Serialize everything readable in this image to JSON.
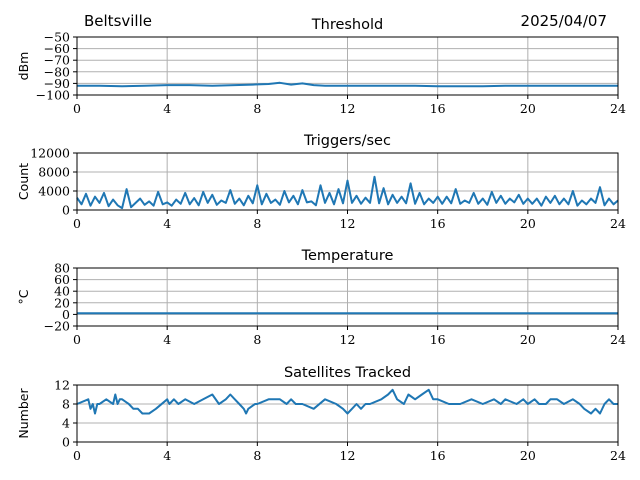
{
  "header": {
    "station": "Beltsville",
    "date": "2025/04/07"
  },
  "colors": {
    "line": "#1f77b4",
    "grid": "#b0b0b0",
    "axis": "#000000"
  },
  "chart_data": [
    {
      "type": "line",
      "title": "Threshold",
      "ylabel": "dBm",
      "xlim": [
        0,
        24
      ],
      "ylim": [
        -100,
        -50
      ],
      "xticks": [
        0,
        4,
        8,
        12,
        16,
        20,
        24
      ],
      "yticks": [
        -100,
        -90,
        -80,
        -70,
        -60,
        -50
      ],
      "grid": true,
      "series": [
        {
          "x": [
            0,
            1,
            2,
            3,
            4,
            5,
            6,
            7,
            7.8,
            8.5,
            9,
            9.5,
            10,
            10.5,
            11,
            12,
            13,
            14,
            15,
            16,
            17,
            18,
            19,
            20,
            21,
            22,
            23,
            24
          ],
          "values": [
            -92,
            -92,
            -92.5,
            -92,
            -91.5,
            -91.5,
            -92,
            -91.5,
            -91,
            -90.5,
            -89.5,
            -91,
            -90,
            -91.5,
            -92,
            -92,
            -92,
            -92,
            -92,
            -92.5,
            -92.5,
            -92.5,
            -92,
            -92,
            -92,
            -92,
            -92,
            -92
          ]
        }
      ]
    },
    {
      "type": "line",
      "title": "Triggers/sec",
      "ylabel": "Count",
      "xlim": [
        0,
        24
      ],
      "ylim": [
        0,
        12000
      ],
      "xticks": [
        0,
        4,
        8,
        12,
        16,
        20,
        24
      ],
      "yticks": [
        0,
        4000,
        8000,
        12000
      ],
      "grid": true,
      "series": [
        {
          "x": [
            0,
            0.2,
            0.4,
            0.6,
            0.8,
            1.0,
            1.2,
            1.4,
            1.6,
            1.8,
            2.0,
            2.2,
            2.4,
            2.6,
            2.8,
            3.0,
            3.2,
            3.4,
            3.6,
            3.8,
            4.0,
            4.2,
            4.4,
            4.6,
            4.8,
            5.0,
            5.2,
            5.4,
            5.6,
            5.8,
            6.0,
            6.2,
            6.4,
            6.6,
            6.8,
            7.0,
            7.2,
            7.4,
            7.6,
            7.8,
            8.0,
            8.2,
            8.4,
            8.6,
            8.8,
            9.0,
            9.2,
            9.4,
            9.6,
            9.8,
            10.0,
            10.2,
            10.4,
            10.6,
            10.8,
            11.0,
            11.2,
            11.4,
            11.6,
            11.8,
            12.0,
            12.2,
            12.4,
            12.6,
            12.8,
            13.0,
            13.2,
            13.4,
            13.6,
            13.8,
            14.0,
            14.2,
            14.4,
            14.6,
            14.8,
            15.0,
            15.2,
            15.4,
            15.6,
            15.8,
            16.0,
            16.2,
            16.4,
            16.6,
            16.8,
            17.0,
            17.2,
            17.4,
            17.6,
            17.8,
            18.0,
            18.2,
            18.4,
            18.6,
            18.8,
            19.0,
            19.2,
            19.4,
            19.6,
            19.8,
            20.0,
            20.2,
            20.4,
            20.6,
            20.8,
            21.0,
            21.2,
            21.4,
            21.6,
            21.8,
            22.0,
            22.2,
            22.4,
            22.6,
            22.8,
            23.0,
            23.2,
            23.4,
            23.6,
            23.8,
            24.0
          ],
          "values": [
            2600,
            1200,
            3400,
            900,
            2800,
            1500,
            3600,
            800,
            2200,
            1000,
            400,
            4400,
            600,
            1500,
            2400,
            1100,
            1800,
            900,
            3800,
            1200,
            1600,
            900,
            2200,
            1300,
            3600,
            1200,
            2500,
            1000,
            3800,
            1500,
            3200,
            1100,
            2000,
            1500,
            4200,
            1300,
            2400,
            1000,
            3000,
            1400,
            5200,
            1200,
            3400,
            1500,
            2200,
            1100,
            4000,
            1600,
            3000,
            1200,
            4200,
            1600,
            1800,
            1000,
            5200,
            1500,
            3600,
            1200,
            4400,
            1400,
            6200,
            1500,
            3000,
            1300,
            2600,
            1500,
            7000,
            1400,
            4600,
            1200,
            3200,
            1500,
            2800,
            1400,
            5600,
            1300,
            3600,
            1200,
            2400,
            1500,
            2800,
            1300,
            2800,
            1400,
            4400,
            1300,
            2000,
            1500,
            3600,
            1300,
            2400,
            1100,
            3800,
            1500,
            3000,
            1300,
            2400,
            1600,
            3200,
            1300,
            2400,
            1300,
            2400,
            900,
            2800,
            1500,
            3000,
            1200,
            2400,
            1200,
            4000,
            900,
            2000,
            1200,
            2400,
            1500,
            4800,
            1000,
            2400,
            1200,
            2000
          ]
        }
      ]
    },
    {
      "type": "line",
      "title": "Temperature",
      "ylabel": "°C",
      "xlim": [
        0,
        24
      ],
      "ylim": [
        -20,
        80
      ],
      "xticks": [
        0,
        4,
        8,
        12,
        16,
        20,
        24
      ],
      "yticks": [
        -20,
        0,
        20,
        40,
        60,
        80
      ],
      "grid": true,
      "series": [
        {
          "x": [
            0,
            24
          ],
          "values": [
            2,
            2
          ]
        }
      ]
    },
    {
      "type": "line",
      "title": "Satellites Tracked",
      "ylabel": "Number",
      "xlim": [
        0,
        24
      ],
      "ylim": [
        0,
        12
      ],
      "xticks": [
        0,
        4,
        8,
        12,
        16,
        20,
        24
      ],
      "yticks": [
        0,
        4,
        8,
        12
      ],
      "grid": true,
      "series": [
        {
          "x": [
            0,
            0.5,
            0.6,
            0.7,
            0.8,
            0.9,
            1.0,
            1.3,
            1.6,
            1.7,
            1.8,
            1.9,
            2.0,
            2.3,
            2.5,
            2.7,
            2.9,
            3.2,
            3.5,
            4.0,
            4.1,
            4.3,
            4.5,
            4.8,
            5.2,
            5.6,
            6.0,
            6.3,
            6.6,
            6.8,
            7.0,
            7.2,
            7.4,
            7.5,
            7.6,
            7.9,
            8.0,
            8.5,
            9.0,
            9.3,
            9.5,
            9.7,
            10.0,
            10.5,
            11.0,
            11.5,
            11.8,
            12.0,
            12.2,
            12.4,
            12.6,
            12.8,
            13.0,
            13.5,
            13.8,
            14.0,
            14.2,
            14.5,
            14.7,
            15.0,
            15.3,
            15.6,
            15.8,
            16.0,
            16.5,
            17.0,
            17.5,
            18.0,
            18.5,
            18.8,
            19.0,
            19.5,
            19.8,
            20.0,
            20.3,
            20.5,
            20.8,
            21.0,
            21.3,
            21.6,
            22.0,
            22.3,
            22.5,
            22.8,
            23.0,
            23.2,
            23.4,
            23.6,
            23.8,
            24.0
          ],
          "values": [
            8,
            9,
            7,
            8,
            6,
            8,
            8,
            9,
            8,
            10,
            8,
            9,
            9,
            8,
            7,
            7,
            6,
            6,
            7,
            9,
            8,
            9,
            8,
            9,
            8,
            9,
            10,
            8,
            9,
            10,
            9,
            8,
            7,
            6,
            7,
            8,
            8,
            9,
            9,
            8,
            9,
            8,
            8,
            7,
            9,
            8,
            7,
            6,
            7,
            8,
            7,
            8,
            8,
            9,
            10,
            11,
            9,
            8,
            10,
            9,
            10,
            11,
            9,
            9,
            8,
            8,
            9,
            8,
            9,
            8,
            9,
            8,
            9,
            8,
            9,
            8,
            8,
            9,
            9,
            8,
            9,
            8,
            7,
            6,
            7,
            6,
            8,
            9,
            8,
            8
          ]
        }
      ]
    }
  ]
}
